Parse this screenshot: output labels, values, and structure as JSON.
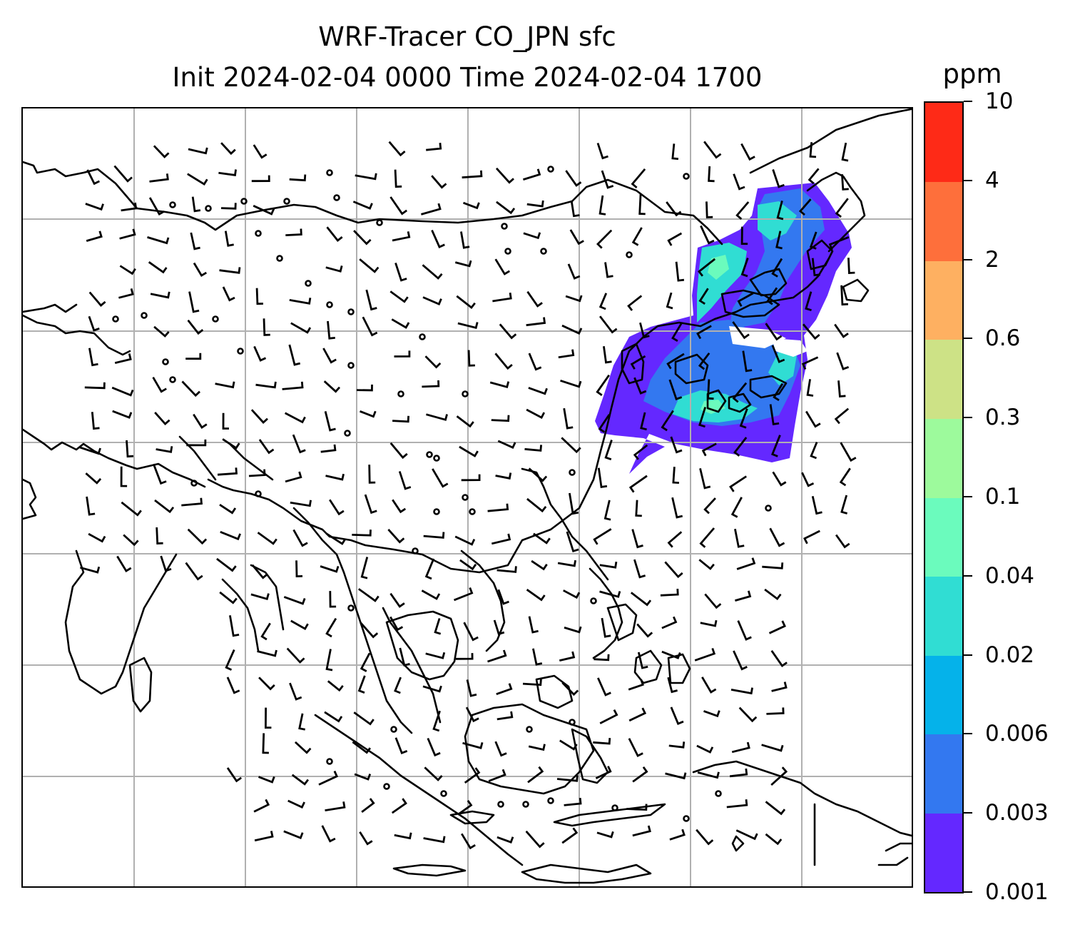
{
  "title": {
    "line1": "WRF-Tracer CO_JPN sfc",
    "line2": "Init 2024-02-04 0000 Time 2024-02-04 1700"
  },
  "colorbar": {
    "units": "ppm",
    "levels": [
      "0.001",
      "0.003",
      "0.006",
      "0.02",
      "0.04",
      "0.1",
      "0.3",
      "0.6",
      "2",
      "4",
      "10"
    ],
    "colors": [
      "#6428ff",
      "#3378f0",
      "#05b2ea",
      "#30ddd3",
      "#6bfbbd",
      "#9dfa9c",
      "#cde286",
      "#feb061",
      "#fe6f3b",
      "#fe2a17"
    ]
  },
  "map": {
    "gridline_color": "#b0b0b0",
    "coastline_color": "#000000",
    "tracer_plume": {
      "color_low": "#6428ff",
      "color_mid": "#3378f0",
      "color_high": "#30ddd3",
      "color_peak": "#6bfbbd"
    }
  }
}
